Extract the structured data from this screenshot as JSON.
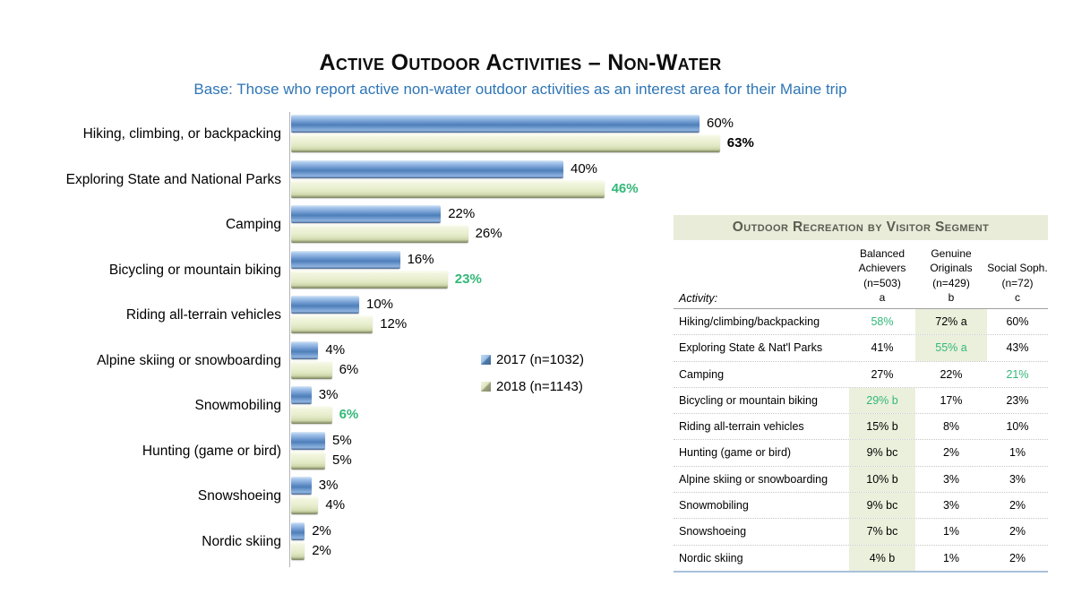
{
  "header": {
    "title": "Active Outdoor Activities – Non-Water",
    "subtitle": "Base: Those who report active non-water outdoor activities as an interest area for their Maine trip"
  },
  "colors": {
    "subtitle_blue": "#2e75b6",
    "bar_blue": "#5e8cc4",
    "bar_green": "#e9efd0",
    "green_highlight_text": "#33b878",
    "table_header_bg": "#e8ecd8",
    "table_cell_highlight_bg": "#ebf0dc"
  },
  "chart_data": {
    "type": "bar",
    "orientation": "horizontal",
    "title": "Active Outdoor Activities – Non-Water",
    "xlabel": "",
    "ylabel": "",
    "xlim": [
      0,
      66
    ],
    "grid": false,
    "legend_position": "center-right",
    "value_labels": true,
    "categories": [
      "Hiking, climbing, or backpacking",
      "Exploring State and National Parks",
      "Camping",
      "Bicycling or mountain biking",
      "Riding all-terrain vehicles",
      "Alpine skiing or snowboarding",
      "Snowmobiling",
      "Hunting (game or bird)",
      "Snowshoeing",
      "Nordic skiing"
    ],
    "series": [
      {
        "name": "2017 (n=1032)",
        "values": [
          60,
          40,
          22,
          16,
          10,
          4,
          3,
          5,
          3,
          2
        ],
        "label_styles": [
          "",
          "",
          "",
          "",
          "",
          "",
          "",
          "",
          "",
          ""
        ]
      },
      {
        "name": "2018 (n=1143)",
        "values": [
          63,
          46,
          26,
          23,
          12,
          6,
          6,
          5,
          4,
          2
        ],
        "label_styles": [
          "bold",
          "bold green",
          "",
          "bold green",
          "",
          "",
          "bold green",
          "",
          "",
          ""
        ]
      }
    ]
  },
  "segment_table": {
    "title": "Outdoor Recreation by Visitor Segment",
    "row_header": "Activity:",
    "columns": [
      {
        "name": "Balanced Achievers",
        "n": "(n=503)",
        "letter": "a"
      },
      {
        "name": "Genuine Originals",
        "n": "(n=429)",
        "letter": "b"
      },
      {
        "name": "Social Soph.",
        "n": "(n=72)",
        "letter": "c"
      }
    ],
    "rows": [
      {
        "activity": "Hiking/climbing/backpacking",
        "values": [
          {
            "text": "58%",
            "green": true
          },
          {
            "text": "72% a",
            "highlight": true
          },
          {
            "text": "60%"
          }
        ]
      },
      {
        "activity": "Exploring State & Nat'l Parks",
        "values": [
          {
            "text": "41%"
          },
          {
            "text": "55% a",
            "green": true,
            "highlight": true
          },
          {
            "text": "43%"
          }
        ]
      },
      {
        "activity": "Camping",
        "values": [
          {
            "text": "27%"
          },
          {
            "text": "22%"
          },
          {
            "text": "21%",
            "green": true
          }
        ]
      },
      {
        "activity": "Bicycling or mountain biking",
        "values": [
          {
            "text": "29% b",
            "green": true,
            "highlight": true
          },
          {
            "text": "17%"
          },
          {
            "text": "23%"
          }
        ]
      },
      {
        "activity": "Riding all-terrain vehicles",
        "values": [
          {
            "text": "15% b",
            "highlight": true
          },
          {
            "text": "8%"
          },
          {
            "text": "10%"
          }
        ]
      },
      {
        "activity": "Hunting (game or bird)",
        "values": [
          {
            "text": "9% bc",
            "highlight": true
          },
          {
            "text": "2%"
          },
          {
            "text": "1%"
          }
        ]
      },
      {
        "activity": "Alpine skiing or snowboarding",
        "values": [
          {
            "text": "10% b",
            "highlight": true
          },
          {
            "text": "3%"
          },
          {
            "text": "3%"
          }
        ]
      },
      {
        "activity": "Snowmobiling",
        "values": [
          {
            "text": "9% bc",
            "highlight": true
          },
          {
            "text": "3%"
          },
          {
            "text": "2%"
          }
        ]
      },
      {
        "activity": "Snowshoeing",
        "values": [
          {
            "text": "7% bc",
            "highlight": true
          },
          {
            "text": "1%"
          },
          {
            "text": "2%"
          }
        ]
      },
      {
        "activity": "Nordic skiing",
        "values": [
          {
            "text": "4% b",
            "highlight": true
          },
          {
            "text": "1%"
          },
          {
            "text": "2%"
          }
        ]
      }
    ]
  }
}
